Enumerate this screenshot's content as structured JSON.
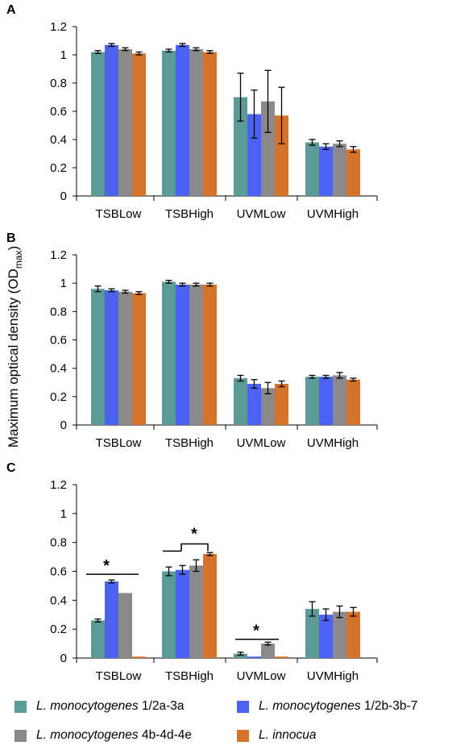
{
  "chart_data": {
    "type": "bar",
    "ylabel": "Maximum optical density (OD",
    "ylabel_subscript": "max",
    "ylabel_suffix": ")",
    "categories": [
      "TSBLow",
      "TSBHigh",
      "UVMLow",
      "UVMHigh"
    ],
    "ylim": [
      0,
      1.2
    ],
    "yticks": [
      "0",
      "0.2",
      "0.4",
      "0.6",
      "0.8",
      "1",
      "1.2"
    ],
    "grid": false,
    "legend_position": "bottom",
    "series_meta": [
      {
        "name_italic": "L. monocytogenes",
        "name_rest": " 1/2a-3a",
        "color": "#5b9a96"
      },
      {
        "name_italic": "L. monocytogenes",
        "name_rest": " 1/2b-3b-7",
        "color": "#4a63f2"
      },
      {
        "name_italic": "L. monocytogenes",
        "name_rest": " 4b-4d-4e",
        "color": "#8a8a8a"
      },
      {
        "name_italic": "L. innocua",
        "name_rest": "",
        "color": "#d7722b"
      }
    ],
    "panels": [
      {
        "label": "A",
        "series": [
          {
            "values": [
              1.02,
              1.03,
              0.7,
              0.38
            ],
            "errors": [
              0.01,
              0.01,
              0.17,
              0.02
            ]
          },
          {
            "values": [
              1.07,
              1.07,
              0.58,
              0.35
            ],
            "errors": [
              0.01,
              0.01,
              0.17,
              0.02
            ]
          },
          {
            "values": [
              1.04,
              1.04,
              0.67,
              0.37
            ],
            "errors": [
              0.01,
              0.01,
              0.22,
              0.02
            ]
          },
          {
            "values": [
              1.01,
              1.02,
              0.57,
              0.33
            ],
            "errors": [
              0.01,
              0.01,
              0.2,
              0.02
            ]
          }
        ],
        "annotations": []
      },
      {
        "label": "B",
        "series": [
          {
            "values": [
              0.96,
              1.01,
              0.33,
              0.34
            ],
            "errors": [
              0.02,
              0.01,
              0.02,
              0.01
            ]
          },
          {
            "values": [
              0.95,
              0.99,
              0.29,
              0.34
            ],
            "errors": [
              0.01,
              0.01,
              0.03,
              0.01
            ]
          },
          {
            "values": [
              0.94,
              0.99,
              0.26,
              0.35
            ],
            "errors": [
              0.01,
              0.01,
              0.04,
              0.02
            ]
          },
          {
            "values": [
              0.93,
              0.99,
              0.29,
              0.32
            ],
            "errors": [
              0.01,
              0.01,
              0.02,
              0.01
            ]
          }
        ],
        "annotations": []
      },
      {
        "label": "C",
        "series": [
          {
            "values": [
              0.26,
              0.6,
              0.03,
              0.34
            ],
            "errors": [
              0.01,
              0.03,
              0.01,
              0.05
            ]
          },
          {
            "values": [
              0.53,
              0.61,
              0.01,
              0.3
            ],
            "errors": [
              0.01,
              0.03,
              0.0,
              0.04
            ]
          },
          {
            "values": [
              0.45,
              0.64,
              0.1,
              0.32
            ],
            "errors": [
              0.0,
              0.04,
              0.01,
              0.04
            ]
          },
          {
            "values": [
              0.01,
              0.72,
              0.01,
              0.32
            ],
            "errors": [
              0.0,
              0.01,
              0.0,
              0.03
            ]
          }
        ],
        "annotations": [
          "*",
          "*",
          "*"
        ]
      }
    ]
  }
}
